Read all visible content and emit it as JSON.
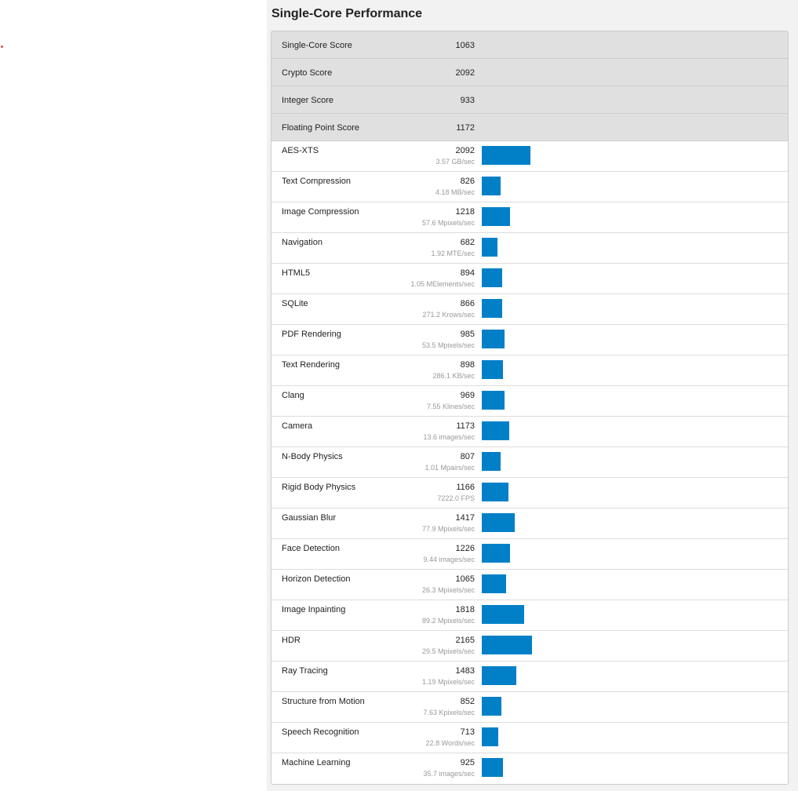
{
  "section": {
    "title": "Single-Core Performance"
  },
  "scores": [
    {
      "label": "Single-Core Score",
      "value": "1063"
    },
    {
      "label": "Crypto Score",
      "value": "2092"
    },
    {
      "label": "Integer Score",
      "value": "933"
    },
    {
      "label": "Floating Point Score",
      "value": "1172"
    }
  ],
  "bar_color": "#0180c8",
  "bar_max_score": 2165,
  "benchmarks": [
    {
      "label": "AES-XTS",
      "score": 2092,
      "rate": "3.57 GB/sec"
    },
    {
      "label": "Text Compression",
      "score": 826,
      "rate": "4.18 MB/sec"
    },
    {
      "label": "Image Compression",
      "score": 1218,
      "rate": "57.6 Mpixels/sec"
    },
    {
      "label": "Navigation",
      "score": 682,
      "rate": "1.92 MTE/sec"
    },
    {
      "label": "HTML5",
      "score": 894,
      "rate": "1.05 MElements/sec"
    },
    {
      "label": "SQLite",
      "score": 866,
      "rate": "271.2 Krows/sec"
    },
    {
      "label": "PDF Rendering",
      "score": 985,
      "rate": "53.5 Mpixels/sec"
    },
    {
      "label": "Text Rendering",
      "score": 898,
      "rate": "286.1 KB/sec"
    },
    {
      "label": "Clang",
      "score": 969,
      "rate": "7.55 Klines/sec"
    },
    {
      "label": "Camera",
      "score": 1173,
      "rate": "13.6 images/sec"
    },
    {
      "label": "N-Body Physics",
      "score": 807,
      "rate": "1.01 Mpairs/sec"
    },
    {
      "label": "Rigid Body Physics",
      "score": 1166,
      "rate": "7222.0 FPS"
    },
    {
      "label": "Gaussian Blur",
      "score": 1417,
      "rate": "77.9 Mpixels/sec"
    },
    {
      "label": "Face Detection",
      "score": 1226,
      "rate": "9.44 images/sec"
    },
    {
      "label": "Horizon Detection",
      "score": 1065,
      "rate": "26.3 Mpixels/sec"
    },
    {
      "label": "Image Inpainting",
      "score": 1818,
      "rate": "89.2 Mpixels/sec"
    },
    {
      "label": "HDR",
      "score": 2165,
      "rate": "29.5 Mpixels/sec"
    },
    {
      "label": "Ray Tracing",
      "score": 1483,
      "rate": "1.19 Mpixels/sec"
    },
    {
      "label": "Structure from Motion",
      "score": 852,
      "rate": "7.63 Kpixels/sec"
    },
    {
      "label": "Speech Recognition",
      "score": 713,
      "rate": "22.8 Words/sec"
    },
    {
      "label": "Machine Learning",
      "score": 925,
      "rate": "35.7 images/sec"
    }
  ]
}
